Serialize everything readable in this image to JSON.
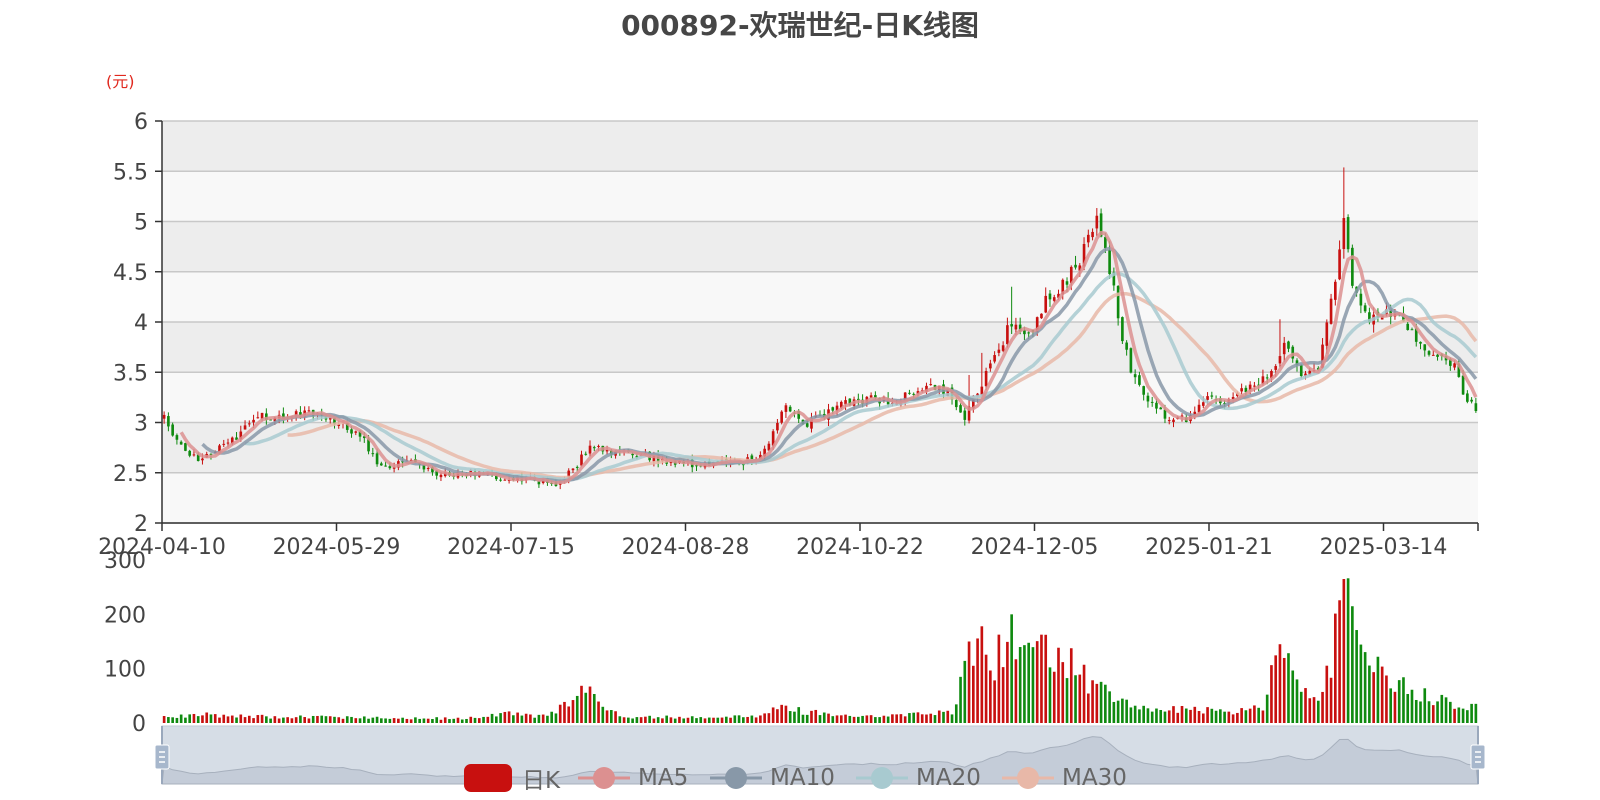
{
  "chart_data": {
    "type": "candlestick",
    "title": "000892-欢瑞世纪-日K线图",
    "unit": "(元)",
    "x_tick_labels": [
      "2024-04-10",
      "2024-05-29",
      "2024-07-15",
      "2024-08-28",
      "2024-10-22",
      "2024-12-05",
      "2025-01-21",
      "2025-03-14"
    ],
    "ylim": [
      2,
      6
    ],
    "y_ticks": [
      "2",
      "2.5",
      "3",
      "3.5",
      "4",
      "4.5",
      "5",
      "5.5",
      "6"
    ],
    "volume_ylim": [
      0,
      300
    ],
    "volume_ticks": [
      "0",
      "100",
      "200",
      "300"
    ],
    "legend": [
      "日K",
      "MA5",
      "MA10",
      "MA20",
      "MA30"
    ],
    "colors": {
      "up": "#c8100f",
      "down": "#0f8a0f",
      "MA5": "#dc9090",
      "MA10": "#8898a8",
      "MA20": "#a8cad0",
      "MA30": "#e8b8a8"
    },
    "close_anchors": [
      [
        0,
        3.05
      ],
      [
        4,
        2.75
      ],
      [
        8,
        2.62
      ],
      [
        15,
        2.78
      ],
      [
        22,
        3.05
      ],
      [
        30,
        3.08
      ],
      [
        36,
        3.1
      ],
      [
        40,
        3.02
      ],
      [
        46,
        2.88
      ],
      [
        51,
        2.55
      ],
      [
        58,
        2.62
      ],
      [
        64,
        2.48
      ],
      [
        72,
        2.5
      ],
      [
        80,
        2.44
      ],
      [
        87,
        2.42
      ],
      [
        92,
        2.4
      ],
      [
        96,
        2.52
      ],
      [
        100,
        2.78
      ],
      [
        104,
        2.7
      ],
      [
        110,
        2.7
      ],
      [
        116,
        2.62
      ],
      [
        124,
        2.58
      ],
      [
        132,
        2.6
      ],
      [
        138,
        2.62
      ],
      [
        142,
        2.78
      ],
      [
        146,
        3.2
      ],
      [
        150,
        2.95
      ],
      [
        155,
        3.08
      ],
      [
        160,
        3.18
      ],
      [
        166,
        3.25
      ],
      [
        172,
        3.2
      ],
      [
        178,
        3.35
      ],
      [
        184,
        3.32
      ],
      [
        188,
        3.05
      ],
      [
        192,
        3.4
      ],
      [
        195,
        3.65
      ],
      [
        199,
        4.0
      ],
      [
        203,
        3.85
      ],
      [
        207,
        4.2
      ],
      [
        211,
        4.38
      ],
      [
        215,
        4.6
      ],
      [
        219,
        5.05
      ],
      [
        221,
        4.75
      ],
      [
        225,
        3.85
      ],
      [
        228,
        3.4
      ],
      [
        232,
        3.2
      ],
      [
        236,
        3.0
      ],
      [
        240,
        3.05
      ],
      [
        244,
        3.25
      ],
      [
        248,
        3.2
      ],
      [
        252,
        3.28
      ],
      [
        256,
        3.38
      ],
      [
        260,
        3.48
      ],
      [
        263,
        3.8
      ],
      [
        267,
        3.5
      ],
      [
        271,
        3.55
      ],
      [
        275,
        4.4
      ],
      [
        277,
        5.05
      ],
      [
        279,
        4.4
      ],
      [
        283,
        4.05
      ],
      [
        287,
        4.15
      ],
      [
        291,
        4.0
      ],
      [
        295,
        3.8
      ],
      [
        299,
        3.65
      ],
      [
        303,
        3.55
      ],
      [
        306,
        3.2
      ],
      [
        308,
        3.15
      ]
    ],
    "volume_anchors": [
      [
        0,
        12
      ],
      [
        10,
        15
      ],
      [
        20,
        12
      ],
      [
        45,
        10
      ],
      [
        70,
        8
      ],
      [
        80,
        18
      ],
      [
        90,
        12
      ],
      [
        96,
        40
      ],
      [
        100,
        80
      ],
      [
        103,
        25
      ],
      [
        108,
        12
      ],
      [
        130,
        10
      ],
      [
        140,
        15
      ],
      [
        146,
        30
      ],
      [
        150,
        20
      ],
      [
        160,
        15
      ],
      [
        170,
        12
      ],
      [
        180,
        18
      ],
      [
        185,
        20
      ],
      [
        189,
        120
      ],
      [
        192,
        160
      ],
      [
        195,
        110
      ],
      [
        199,
        180
      ],
      [
        203,
        130
      ],
      [
        207,
        135
      ],
      [
        211,
        120
      ],
      [
        214,
        110
      ],
      [
        217,
        70
      ],
      [
        220,
        60
      ],
      [
        224,
        40
      ],
      [
        230,
        30
      ],
      [
        240,
        25
      ],
      [
        250,
        20
      ],
      [
        258,
        30
      ],
      [
        262,
        140
      ],
      [
        266,
        70
      ],
      [
        270,
        40
      ],
      [
        274,
        100
      ],
      [
        276,
        260
      ],
      [
        278,
        250
      ],
      [
        280,
        150
      ],
      [
        283,
        110
      ],
      [
        287,
        90
      ],
      [
        292,
        60
      ],
      [
        300,
        40
      ],
      [
        308,
        30
      ]
    ],
    "volume_spikes": [
      [
        277,
        265
      ],
      [
        262,
        145
      ],
      [
        199,
        200
      ],
      [
        192,
        178
      ],
      [
        189,
        150
      ]
    ]
  },
  "zoom": {
    "start_percent": 0,
    "end_percent": 100
  }
}
